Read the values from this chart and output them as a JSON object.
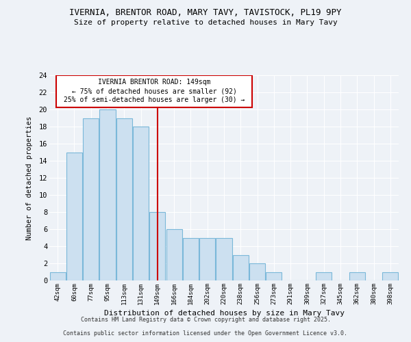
{
  "title_line1": "IVERNIA, BRENTOR ROAD, MARY TAVY, TAVISTOCK, PL19 9PY",
  "title_line2": "Size of property relative to detached houses in Mary Tavy",
  "xlabel": "Distribution of detached houses by size in Mary Tavy",
  "ylabel": "Number of detached properties",
  "categories": [
    "42sqm",
    "60sqm",
    "77sqm",
    "95sqm",
    "113sqm",
    "131sqm",
    "149sqm",
    "166sqm",
    "184sqm",
    "202sqm",
    "220sqm",
    "238sqm",
    "256sqm",
    "273sqm",
    "291sqm",
    "309sqm",
    "327sqm",
    "345sqm",
    "362sqm",
    "380sqm",
    "398sqm"
  ],
  "values": [
    1,
    15,
    19,
    20,
    19,
    18,
    8,
    6,
    5,
    5,
    5,
    3,
    2,
    1,
    0,
    0,
    1,
    0,
    1,
    0,
    1
  ],
  "bar_color": "#cce0f0",
  "bar_edge_color": "#7ab8d9",
  "marker_index": 6,
  "marker_color": "#cc0000",
  "annotation_title": "IVERNIA BRENTOR ROAD: 149sqm",
  "annotation_line2": "← 75% of detached houses are smaller (92)",
  "annotation_line3": "25% of semi-detached houses are larger (30) →",
  "ylim": [
    0,
    24
  ],
  "yticks": [
    0,
    2,
    4,
    6,
    8,
    10,
    12,
    14,
    16,
    18,
    20,
    22,
    24
  ],
  "background_color": "#eef2f7",
  "grid_color": "#ffffff",
  "footer_line1": "Contains HM Land Registry data © Crown copyright and database right 2025.",
  "footer_line2": "Contains public sector information licensed under the Open Government Licence v3.0."
}
